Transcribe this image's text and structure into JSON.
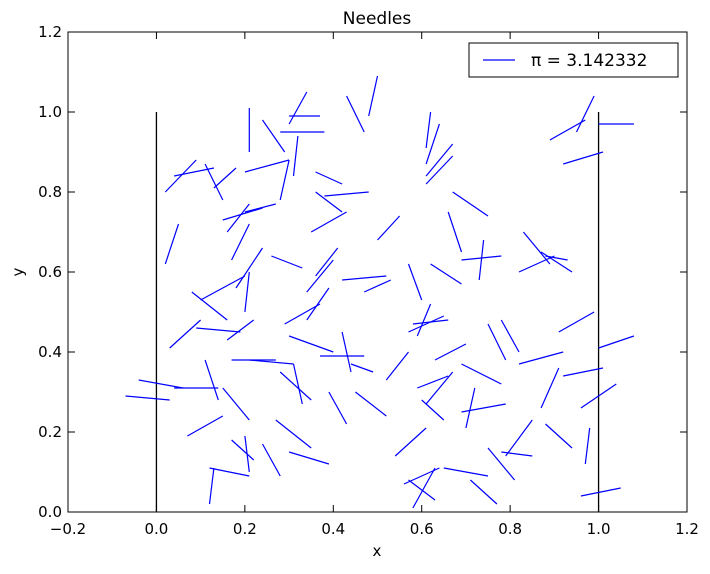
{
  "chart_data": {
    "type": "line",
    "title": "Needles",
    "xlabel": "x",
    "ylabel": "y",
    "xlim": [
      -0.2,
      1.2
    ],
    "ylim": [
      0.0,
      1.2
    ],
    "xticks": [
      "−0.2",
      "0.0",
      "0.2",
      "0.4",
      "0.6",
      "0.8",
      "1.0",
      "1.2"
    ],
    "yticks": [
      "0.0",
      "0.2",
      "0.4",
      "0.6",
      "0.8",
      "1.0",
      "1.2"
    ],
    "grid": false,
    "legend": {
      "position": "top-right",
      "entries": [
        "π = 3.142332"
      ]
    },
    "colors": {
      "needle": "#0000ff",
      "boundary": "#000000"
    },
    "boundaries": [
      {
        "x": 0.0,
        "y0": 0.0,
        "y1": 1.0
      },
      {
        "x": 1.0,
        "y0": 0.0,
        "y1": 1.0
      }
    ],
    "series": [
      {
        "name": "π = 3.142332",
        "segments": [
          [
            -0.07,
            0.29,
            0.03,
            0.28
          ],
          [
            -0.04,
            0.33,
            0.06,
            0.31
          ],
          [
            0.04,
            0.31,
            0.14,
            0.31
          ],
          [
            0.03,
            0.41,
            0.1,
            0.48
          ],
          [
            0.02,
            0.62,
            0.05,
            0.72
          ],
          [
            0.02,
            0.8,
            0.09,
            0.88
          ],
          [
            0.04,
            0.84,
            0.13,
            0.86
          ],
          [
            0.11,
            0.87,
            0.15,
            0.78
          ],
          [
            0.08,
            0.55,
            0.16,
            0.48
          ],
          [
            0.09,
            0.46,
            0.19,
            0.45
          ],
          [
            0.1,
            0.53,
            0.2,
            0.59
          ],
          [
            0.11,
            0.38,
            0.14,
            0.28
          ],
          [
            0.07,
            0.19,
            0.15,
            0.24
          ],
          [
            0.12,
            0.11,
            0.21,
            0.09
          ],
          [
            0.12,
            0.02,
            0.13,
            0.11
          ],
          [
            0.15,
            0.31,
            0.21,
            0.23
          ],
          [
            0.17,
            0.18,
            0.22,
            0.13
          ],
          [
            0.2,
            0.19,
            0.21,
            0.1
          ],
          [
            0.17,
            0.38,
            0.27,
            0.38
          ],
          [
            0.21,
            0.38,
            0.31,
            0.37
          ],
          [
            0.16,
            0.43,
            0.22,
            0.48
          ],
          [
            0.2,
            0.5,
            0.21,
            0.6
          ],
          [
            0.18,
            0.56,
            0.24,
            0.66
          ],
          [
            0.17,
            0.63,
            0.21,
            0.72
          ],
          [
            0.15,
            0.73,
            0.24,
            0.76
          ],
          [
            0.16,
            0.7,
            0.21,
            0.77
          ],
          [
            0.2,
            0.75,
            0.27,
            0.77
          ],
          [
            0.2,
            0.85,
            0.3,
            0.88
          ],
          [
            0.21,
            0.9,
            0.21,
            1.01
          ],
          [
            0.24,
            0.98,
            0.29,
            0.9
          ],
          [
            0.28,
            0.78,
            0.3,
            0.88
          ],
          [
            0.31,
            0.84,
            0.32,
            0.94
          ],
          [
            0.28,
            0.95,
            0.38,
            0.95
          ],
          [
            0.3,
            0.99,
            0.37,
            0.99
          ],
          [
            0.3,
            0.97,
            0.34,
            1.05
          ],
          [
            0.24,
            0.17,
            0.28,
            0.09
          ],
          [
            0.27,
            0.23,
            0.35,
            0.16
          ],
          [
            0.3,
            0.15,
            0.39,
            0.12
          ],
          [
            0.31,
            0.37,
            0.33,
            0.27
          ],
          [
            0.28,
            0.35,
            0.35,
            0.28
          ],
          [
            0.29,
            0.47,
            0.37,
            0.52
          ],
          [
            0.3,
            0.44,
            0.4,
            0.4
          ],
          [
            0.34,
            0.48,
            0.39,
            0.56
          ],
          [
            0.34,
            0.55,
            0.4,
            0.63
          ],
          [
            0.35,
            0.7,
            0.43,
            0.75
          ],
          [
            0.36,
            0.8,
            0.42,
            0.75
          ],
          [
            0.38,
            0.79,
            0.48,
            0.8
          ],
          [
            0.36,
            0.85,
            0.42,
            0.82
          ],
          [
            0.39,
            0.3,
            0.43,
            0.22
          ],
          [
            0.37,
            0.39,
            0.47,
            0.39
          ],
          [
            0.44,
            0.35,
            0.42,
            0.45
          ],
          [
            0.45,
            0.3,
            0.52,
            0.24
          ],
          [
            0.42,
            0.58,
            0.52,
            0.59
          ],
          [
            0.43,
            1.04,
            0.47,
            0.95
          ],
          [
            0.48,
            0.99,
            0.5,
            1.09
          ],
          [
            0.52,
            0.33,
            0.57,
            0.4
          ],
          [
            0.54,
            0.14,
            0.61,
            0.21
          ],
          [
            0.56,
            0.07,
            0.64,
            0.11
          ],
          [
            0.57,
            0.08,
            0.63,
            0.03
          ],
          [
            0.58,
            0.01,
            0.63,
            0.11
          ],
          [
            0.59,
            0.31,
            0.66,
            0.34
          ],
          [
            0.6,
            0.28,
            0.65,
            0.23
          ],
          [
            0.61,
            0.27,
            0.67,
            0.35
          ],
          [
            0.59,
            0.44,
            0.62,
            0.52
          ],
          [
            0.57,
            0.45,
            0.65,
            0.49
          ],
          [
            0.58,
            0.47,
            0.66,
            0.48
          ],
          [
            0.57,
            0.62,
            0.6,
            0.53
          ],
          [
            0.62,
            0.62,
            0.69,
            0.57
          ],
          [
            0.61,
            0.82,
            0.67,
            0.89
          ],
          [
            0.61,
            0.84,
            0.67,
            0.92
          ],
          [
            0.61,
            0.87,
            0.64,
            0.97
          ],
          [
            0.61,
            0.91,
            0.62,
            1.0
          ],
          [
            0.66,
            0.75,
            0.69,
            0.65
          ],
          [
            0.67,
            0.8,
            0.75,
            0.74
          ],
          [
            0.69,
            0.63,
            0.78,
            0.64
          ],
          [
            0.73,
            0.58,
            0.74,
            0.68
          ],
          [
            0.69,
            0.25,
            0.79,
            0.27
          ],
          [
            0.69,
            0.37,
            0.78,
            0.32
          ],
          [
            0.7,
            0.21,
            0.72,
            0.31
          ],
          [
            0.65,
            0.11,
            0.75,
            0.09
          ],
          [
            0.71,
            0.08,
            0.77,
            0.02
          ],
          [
            0.75,
            0.16,
            0.81,
            0.08
          ],
          [
            0.78,
            0.15,
            0.85,
            0.14
          ],
          [
            0.79,
            0.14,
            0.85,
            0.23
          ],
          [
            0.75,
            0.47,
            0.79,
            0.38
          ],
          [
            0.78,
            0.48,
            0.82,
            0.4
          ],
          [
            0.82,
            0.37,
            0.92,
            0.4
          ],
          [
            0.82,
            0.6,
            0.9,
            0.64
          ],
          [
            0.83,
            0.7,
            0.89,
            0.62
          ],
          [
            0.87,
            0.65,
            0.94,
            0.6
          ],
          [
            0.87,
            0.26,
            0.91,
            0.36
          ],
          [
            0.88,
            0.22,
            0.94,
            0.16
          ],
          [
            0.89,
            0.93,
            0.97,
            0.98
          ],
          [
            0.91,
            0.45,
            0.99,
            0.5
          ],
          [
            0.92,
            0.34,
            1.01,
            0.36
          ],
          [
            0.92,
            0.87,
            1.01,
            0.9
          ],
          [
            0.95,
            0.95,
            0.99,
            1.04
          ],
          [
            0.97,
            0.12,
            0.98,
            0.21
          ],
          [
            0.96,
            0.26,
            1.04,
            0.32
          ],
          [
            0.96,
            0.04,
            1.05,
            0.06
          ],
          [
            1.0,
            0.97,
            1.08,
            0.97
          ],
          [
            1.0,
            0.41,
            1.08,
            0.44
          ],
          [
            0.88,
            0.64,
            0.93,
            0.63
          ],
          [
            0.44,
            0.37,
            0.49,
            0.35
          ],
          [
            0.13,
            0.81,
            0.18,
            0.86
          ],
          [
            0.47,
            0.55,
            0.53,
            0.58
          ],
          [
            0.5,
            0.68,
            0.55,
            0.74
          ],
          [
            0.63,
            0.38,
            0.7,
            0.42
          ],
          [
            0.26,
            0.64,
            0.33,
            0.61
          ],
          [
            0.36,
            0.59,
            0.41,
            0.66
          ]
        ]
      }
    ]
  }
}
